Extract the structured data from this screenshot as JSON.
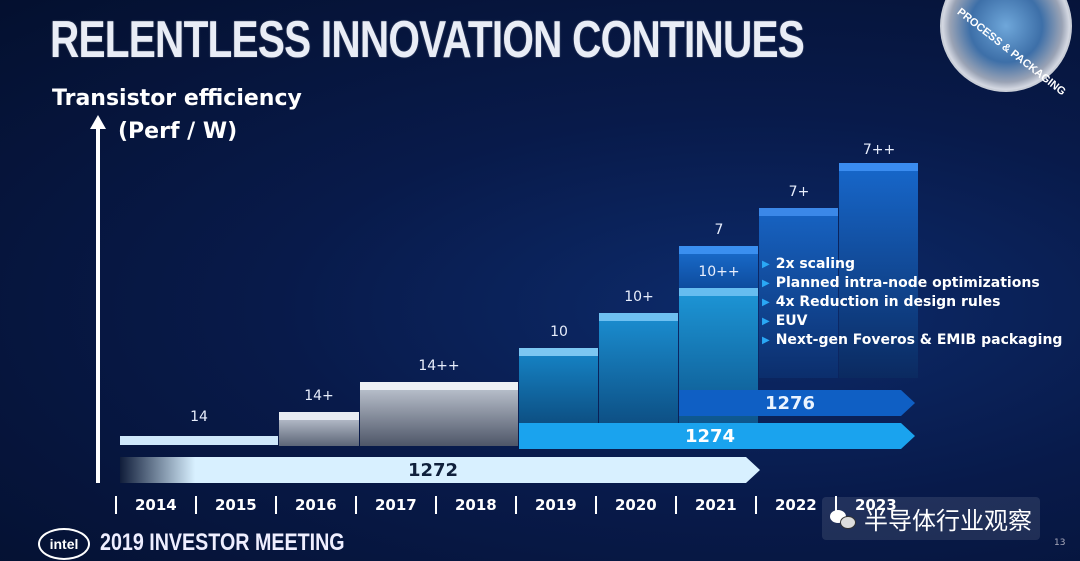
{
  "slide": {
    "title": "RELENTLESS INNOVATION CONTINUES",
    "badge": "PROCESS & PACKAGING",
    "page_number": "13"
  },
  "axis": {
    "y_label_line1": "Transistor efficiency",
    "y_label_line2": "(Perf / W)",
    "years": [
      "2014",
      "2015",
      "2016",
      "2017",
      "2018",
      "2019",
      "2020",
      "2021",
      "2022",
      "2023"
    ]
  },
  "nodes": [
    {
      "label": "14",
      "start_year": "2014",
      "end_year": "2016"
    },
    {
      "label": "14+",
      "start_year": "2016",
      "end_year": "2017"
    },
    {
      "label": "14++",
      "start_year": "2017",
      "end_year": "2019"
    },
    {
      "label": "10",
      "start_year": "2019",
      "end_year": "2020"
    },
    {
      "label": "10+",
      "start_year": "2020",
      "end_year": "2021"
    },
    {
      "label": "10++",
      "start_year": "2021",
      "end_year": "2022"
    },
    {
      "label": "7",
      "start_year": "2021",
      "end_year": "2022"
    },
    {
      "label": "7+",
      "start_year": "2022",
      "end_year": "2023"
    },
    {
      "label": "7++",
      "start_year": "2023",
      "end_year": "2024"
    }
  ],
  "process_arrows": [
    {
      "label": "1272",
      "color": "#d8f0ff"
    },
    {
      "label": "1274",
      "color": "#1aa3ee"
    },
    {
      "label": "1276",
      "color": "#0f5fc4"
    }
  ],
  "bullets": [
    "2x scaling",
    "Planned intra-node optimizations",
    "4x Reduction in design rules",
    "EUV",
    "Next-gen Foveros & EMIB packaging"
  ],
  "footer": {
    "logo": "intel",
    "event": "2019 INVESTOR MEETING",
    "watermark": "半导体行业观察"
  }
}
